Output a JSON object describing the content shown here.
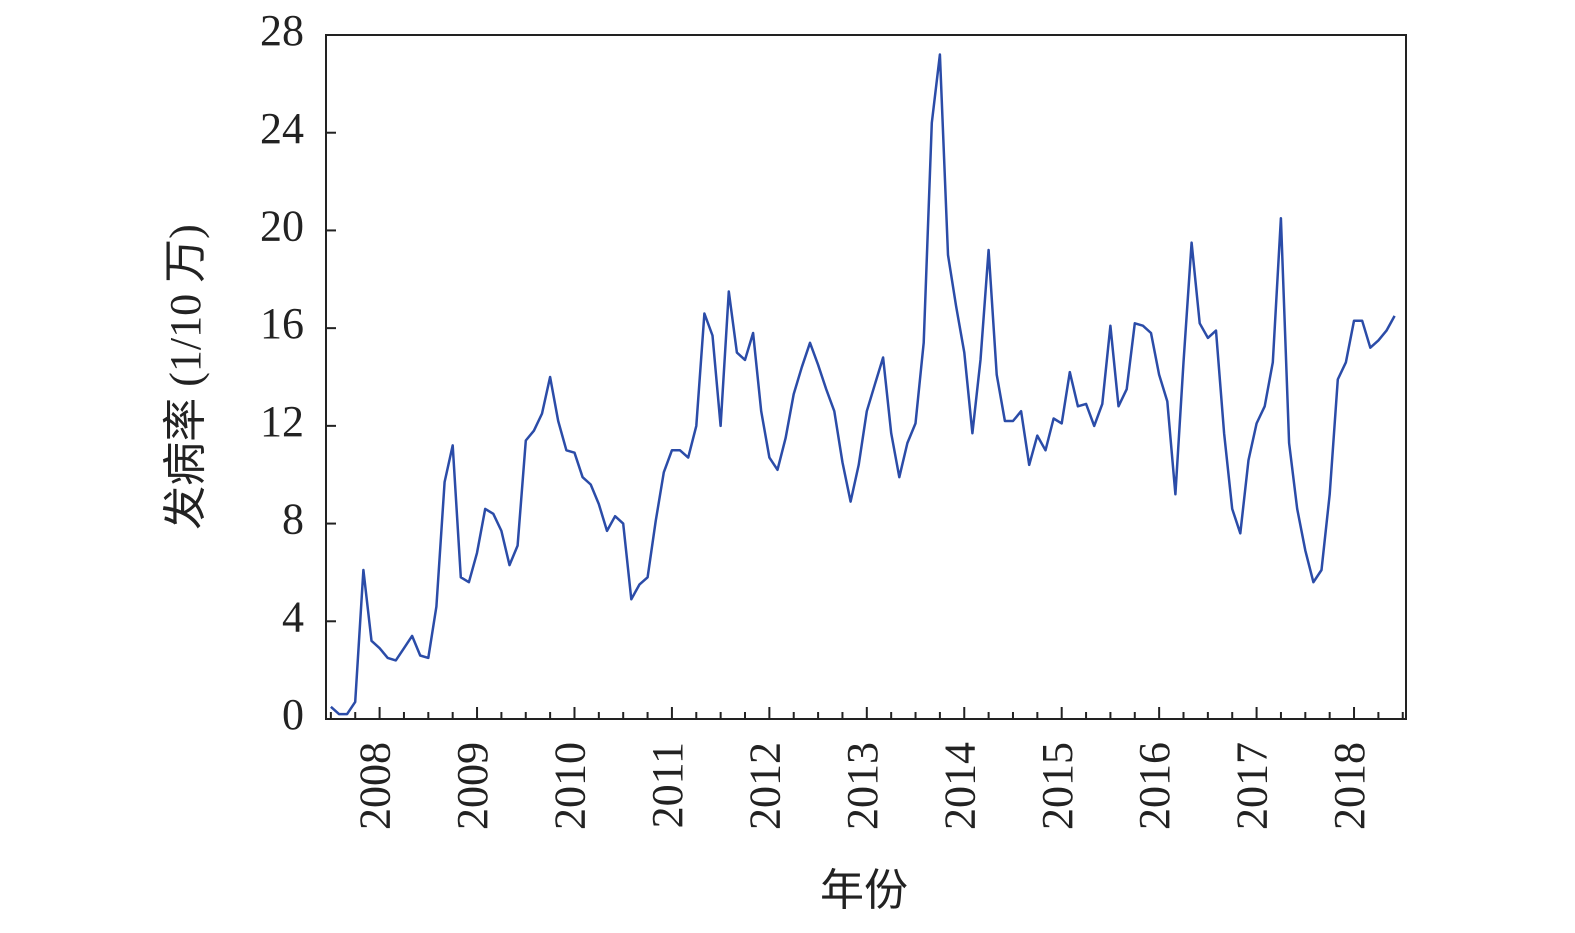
{
  "chart_data": {
    "type": "line",
    "y_label": "发病率 (1/10 万)",
    "x_label": "年份",
    "series": [
      {
        "color": "#2b4ca8",
        "values": [
          0.5,
          0.2,
          0.2,
          0.7,
          6.1,
          3.2,
          2.9,
          2.5,
          2.4,
          2.9,
          3.4,
          2.6,
          2.5,
          4.6,
          9.7,
          11.2,
          5.8,
          5.6,
          6.8,
          8.6,
          8.4,
          7.7,
          6.3,
          7.1,
          11.4,
          11.8,
          12.5,
          14.0,
          12.2,
          11.0,
          10.9,
          9.9,
          9.6,
          8.8,
          7.7,
          8.3,
          8.0,
          4.9,
          5.5,
          5.8,
          8.1,
          10.1,
          11.0,
          11.0,
          10.7,
          12.0,
          16.6,
          15.7,
          12.0,
          17.5,
          15.0,
          14.7,
          15.8,
          12.6,
          10.7,
          10.2,
          11.5,
          13.3,
          14.4,
          15.4,
          14.5,
          13.5,
          12.6,
          10.5,
          8.9,
          10.4,
          12.6,
          13.7,
          14.8,
          11.7,
          9.9,
          11.3,
          12.1,
          15.4,
          24.4,
          27.2,
          19.0,
          16.9,
          15.0,
          11.7,
          14.7,
          19.2,
          14.1,
          12.2,
          12.2,
          12.6,
          10.4,
          11.6,
          11.0,
          12.3,
          12.1,
          14.2,
          12.8,
          12.9,
          12.0,
          12.9,
          16.1,
          12.8,
          13.5,
          16.2,
          16.1,
          15.8,
          14.1,
          13.0,
          9.2,
          14.6,
          19.5,
          16.2,
          15.6,
          15.9,
          11.7,
          8.6,
          7.6,
          10.6,
          12.1,
          12.8,
          14.6,
          20.5,
          11.3,
          8.6,
          6.9,
          5.6,
          6.1,
          9.2,
          13.9,
          14.6,
          16.3,
          16.3,
          15.2,
          15.5,
          15.9,
          16.5
        ]
      }
    ],
    "xlim": [
      -0.6,
      132.4
    ],
    "xticks": [
      {
        "value": 6,
        "label": "2008"
      },
      {
        "value": 18,
        "label": "2009"
      },
      {
        "value": 30,
        "label": "2010"
      },
      {
        "value": 42,
        "label": "2011"
      },
      {
        "value": 54,
        "label": "2012"
      },
      {
        "value": 66,
        "label": "2013"
      },
      {
        "value": 78,
        "label": "2014"
      },
      {
        "value": 90,
        "label": "2015"
      },
      {
        "value": 102,
        "label": "2016"
      },
      {
        "value": 114,
        "label": "2017"
      },
      {
        "value": 126,
        "label": "2018"
      }
    ],
    "xminorticks": [
      0,
      3,
      9,
      12,
      15,
      21,
      24,
      27,
      33,
      36,
      39,
      45,
      48,
      51,
      57,
      60,
      63,
      69,
      72,
      75,
      81,
      84,
      87,
      93,
      96,
      99,
      105,
      108,
      111,
      117,
      120,
      123,
      129,
      132
    ],
    "ylim": [
      0,
      28
    ],
    "yticks": [
      0,
      4,
      8,
      12,
      16,
      20,
      24,
      28
    ],
    "grid": false
  }
}
